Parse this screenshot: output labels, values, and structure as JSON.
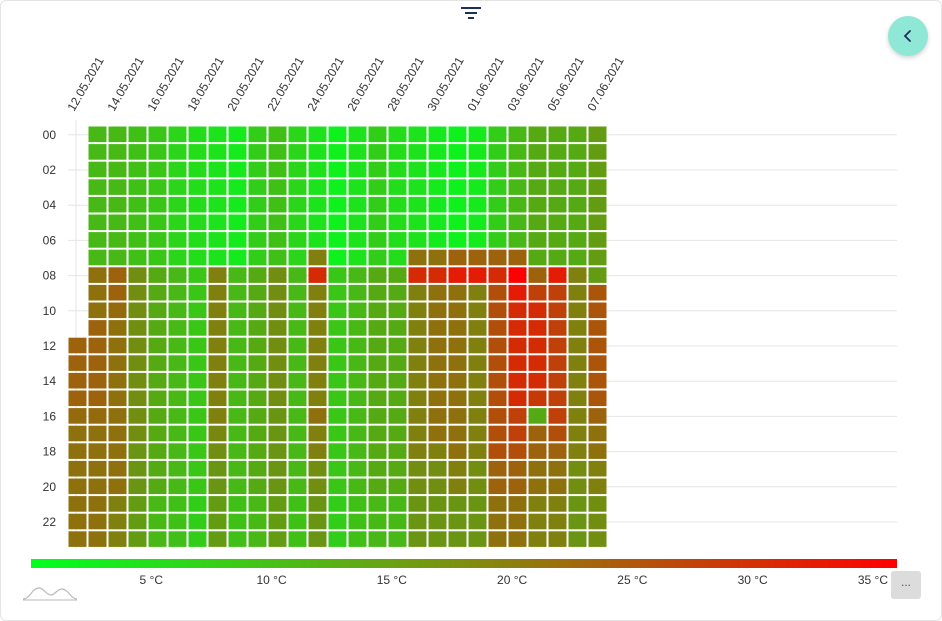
{
  "chart_data": {
    "type": "heatmap",
    "title": "",
    "xlabel": "",
    "ylabel": "",
    "x_tick_labels": [
      "12.05.2021",
      "14.05.2021",
      "16.05.2021",
      "18.05.2021",
      "20.05.2021",
      "22.05.2021",
      "24.05.2021",
      "26.05.2021",
      "28.05.2021",
      "30.05.2021",
      "01.06.2021",
      "03.06.2021",
      "05.06.2021",
      "07.06.2021"
    ],
    "y_tick_labels": [
      "00",
      "02",
      "04",
      "06",
      "08",
      "10",
      "12",
      "14",
      "16",
      "18",
      "20",
      "22"
    ],
    "start_date": "12.05.2021",
    "hours": [
      0,
      1,
      2,
      3,
      4,
      5,
      6,
      7,
      8,
      9,
      10,
      11,
      12,
      13,
      14,
      15,
      16,
      17,
      18,
      19,
      20,
      21,
      22,
      23
    ],
    "color_scale": {
      "min": 0,
      "max": 36,
      "colors": [
        "#00ff1e",
        "#ff0000"
      ],
      "ticks": [
        {
          "value": 5,
          "label": "5 °C"
        },
        {
          "value": 10,
          "label": "10 °C"
        },
        {
          "value": 15,
          "label": "15 °C"
        },
        {
          "value": 20,
          "label": "20 °C"
        },
        {
          "value": 25,
          "label": "25 °C"
        },
        {
          "value": 30,
          "label": "30 °C"
        },
        {
          "value": 35,
          "label": "35 °C"
        }
      ]
    },
    "columns": [
      {
        "date": "12.05.2021",
        "values": [
          null,
          null,
          null,
          null,
          null,
          null,
          null,
          null,
          null,
          null,
          null,
          null,
          22,
          22,
          22,
          22,
          21,
          20,
          20,
          20,
          20,
          20,
          20,
          20
        ]
      },
      {
        "date": "13.05.2021",
        "values": [
          10,
          10,
          10,
          10,
          10,
          10,
          10,
          10,
          20,
          20,
          20,
          22,
          22,
          22,
          22,
          22,
          21,
          20,
          20,
          20,
          20,
          20,
          20,
          20
        ]
      },
      {
        "date": "14.05.2021",
        "values": [
          10,
          10,
          10,
          10,
          10,
          10,
          10,
          10,
          22,
          22,
          21,
          20,
          20,
          20,
          20,
          20,
          20,
          20,
          20,
          20,
          20,
          18,
          18,
          18
        ]
      },
      {
        "date": "15.05.2021",
        "values": [
          9,
          9,
          9,
          9,
          9,
          9,
          9,
          9,
          16,
          16,
          16,
          16,
          16,
          16,
          16,
          16,
          16,
          16,
          15,
          15,
          15,
          14,
          14,
          14
        ]
      },
      {
        "date": "16.05.2021",
        "values": [
          8,
          8,
          8,
          8,
          8,
          8,
          8,
          8,
          12,
          12,
          12,
          12,
          12,
          12,
          12,
          12,
          12,
          12,
          12,
          12,
          12,
          10,
          10,
          10
        ]
      },
      {
        "date": "17.05.2021",
        "values": [
          6,
          6,
          6,
          6,
          6,
          6,
          6,
          6,
          10,
          10,
          10,
          10,
          10,
          10,
          10,
          10,
          10,
          10,
          10,
          10,
          10,
          9,
          9,
          9
        ]
      },
      {
        "date": "18.05.2021",
        "values": [
          5,
          5,
          5,
          5,
          5,
          5,
          5,
          5,
          8,
          8,
          8,
          8,
          8,
          8,
          8,
          8,
          8,
          8,
          8,
          8,
          8,
          7,
          7,
          7
        ]
      },
      {
        "date": "19.05.2021",
        "values": [
          4,
          4,
          4,
          4,
          4,
          4,
          4,
          4,
          18,
          18,
          18,
          18,
          18,
          18,
          18,
          18,
          18,
          17,
          16,
          15,
          15,
          14,
          14,
          14
        ]
      },
      {
        "date": "20.05.2021",
        "values": [
          3,
          3,
          3,
          3,
          3,
          3,
          3,
          3,
          10,
          10,
          10,
          10,
          10,
          10,
          10,
          10,
          10,
          10,
          10,
          10,
          10,
          9,
          9,
          9
        ]
      },
      {
        "date": "21.05.2021",
        "values": [
          7,
          7,
          7,
          7,
          7,
          7,
          7,
          7,
          12,
          12,
          12,
          12,
          12,
          12,
          12,
          12,
          12,
          12,
          12,
          12,
          12,
          10,
          10,
          10
        ]
      },
      {
        "date": "22.05.2021",
        "values": [
          9,
          9,
          9,
          9,
          9,
          9,
          9,
          9,
          16,
          16,
          16,
          16,
          16,
          16,
          16,
          16,
          15,
          15,
          15,
          15,
          15,
          14,
          14,
          14
        ]
      },
      {
        "date": "23.05.2021",
        "values": [
          6,
          6,
          6,
          6,
          6,
          6,
          6,
          6,
          10,
          10,
          10,
          10,
          10,
          10,
          10,
          10,
          10,
          10,
          10,
          10,
          10,
          9,
          9,
          9
        ]
      },
      {
        "date": "24.05.2021",
        "values": [
          4,
          4,
          4,
          4,
          4,
          4,
          4,
          18,
          30,
          18,
          18,
          18,
          18,
          18,
          18,
          18,
          20,
          18,
          18,
          16,
          16,
          15,
          15,
          15
        ]
      },
      {
        "date": "25.05.2021",
        "values": [
          2,
          2,
          2,
          2,
          2,
          2,
          2,
          2,
          8,
          8,
          8,
          8,
          8,
          8,
          8,
          8,
          8,
          8,
          8,
          8,
          8,
          7,
          7,
          7
        ]
      },
      {
        "date": "26.05.2021",
        "values": [
          4,
          4,
          4,
          4,
          4,
          4,
          4,
          4,
          10,
          10,
          10,
          10,
          10,
          10,
          10,
          10,
          10,
          10,
          10,
          10,
          10,
          9,
          9,
          9
        ]
      },
      {
        "date": "27.05.2021",
        "values": [
          7,
          7,
          7,
          7,
          7,
          7,
          7,
          7,
          12,
          12,
          12,
          12,
          12,
          12,
          12,
          12,
          12,
          12,
          12,
          12,
          12,
          10,
          10,
          10
        ]
      },
      {
        "date": "28.05.2021",
        "values": [
          5,
          5,
          5,
          5,
          5,
          5,
          5,
          5,
          12,
          12,
          12,
          12,
          12,
          12,
          12,
          12,
          12,
          12,
          12,
          12,
          12,
          10,
          10,
          10
        ]
      },
      {
        "date": "29.05.2021",
        "values": [
          4,
          4,
          4,
          4,
          4,
          4,
          4,
          20,
          30,
          18,
          18,
          18,
          18,
          18,
          18,
          18,
          18,
          18,
          18,
          16,
          16,
          15,
          15,
          15
        ]
      },
      {
        "date": "30.05.2021",
        "values": [
          3,
          3,
          3,
          3,
          3,
          3,
          3,
          20,
          30,
          20,
          20,
          20,
          20,
          20,
          20,
          20,
          20,
          20,
          18,
          16,
          16,
          15,
          15,
          15
        ]
      },
      {
        "date": "31.05.2021",
        "values": [
          2,
          2,
          2,
          2,
          2,
          2,
          2,
          22,
          32,
          20,
          20,
          20,
          20,
          20,
          20,
          20,
          20,
          20,
          20,
          18,
          18,
          15,
          15,
          15
        ]
      },
      {
        "date": "01.06.2021",
        "values": [
          3,
          3,
          3,
          3,
          3,
          3,
          3,
          22,
          32,
          18,
          18,
          18,
          18,
          18,
          18,
          18,
          18,
          18,
          18,
          16,
          16,
          15,
          15,
          15
        ]
      },
      {
        "date": "02.06.2021",
        "values": [
          7,
          7,
          7,
          7,
          7,
          7,
          7,
          22,
          30,
          25,
          25,
          25,
          25,
          25,
          25,
          25,
          25,
          25,
          25,
          22,
          22,
          20,
          20,
          20
        ]
      },
      {
        "date": "03.06.2021",
        "values": [
          10,
          10,
          10,
          10,
          10,
          10,
          10,
          22,
          36,
          32,
          30,
          30,
          30,
          30,
          30,
          30,
          27,
          27,
          25,
          22,
          22,
          20,
          20,
          20
        ]
      },
      {
        "date": "04.06.2021",
        "values": [
          12,
          12,
          12,
          12,
          12,
          12,
          12,
          12,
          22,
          27,
          30,
          30,
          30,
          30,
          30,
          28,
          12,
          22,
          22,
          20,
          20,
          18,
          18,
          18
        ]
      },
      {
        "date": "05.06.2021",
        "values": [
          12,
          12,
          12,
          12,
          12,
          12,
          12,
          12,
          32,
          27,
          27,
          27,
          27,
          27,
          27,
          27,
          27,
          25,
          22,
          20,
          20,
          18,
          18,
          18
        ]
      },
      {
        "date": "06.06.2021",
        "values": [
          12,
          12,
          12,
          12,
          12,
          12,
          12,
          12,
          18,
          18,
          18,
          18,
          18,
          18,
          18,
          18,
          18,
          18,
          18,
          16,
          16,
          15,
          15,
          15
        ]
      },
      {
        "date": "07.06.2021",
        "values": [
          14,
          14,
          14,
          14,
          14,
          14,
          14,
          14,
          14,
          24,
          24,
          24,
          24,
          24,
          24,
          24,
          22,
          20,
          20,
          18,
          18,
          16,
          16,
          16
        ]
      }
    ]
  },
  "icons": {
    "filter": "filter-icon",
    "back": "chevron-left-icon",
    "brand": "chart-logo-icon"
  },
  "more_label": "...",
  "colors": {
    "accent": "#8fe7d6",
    "icon": "#1f2f5c"
  }
}
